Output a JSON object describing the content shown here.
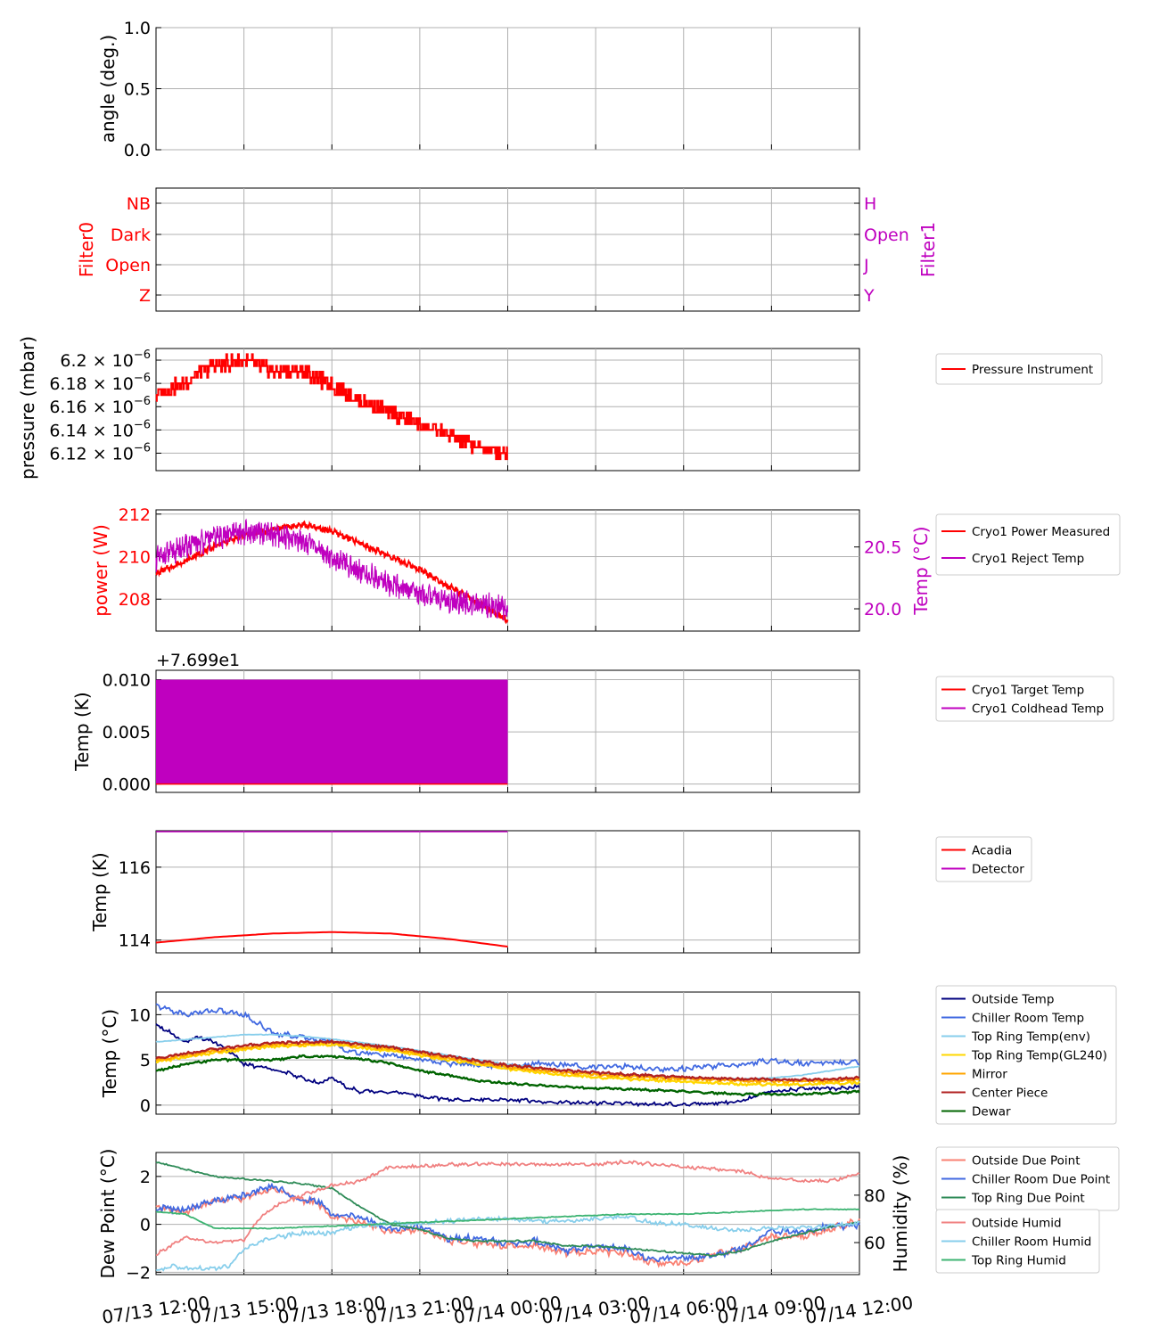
{
  "time_axis": {
    "ticks": [
      "07/13 12:00",
      "07/13 15:00",
      "07/13 18:00",
      "07/13 21:00",
      "07/14 00:00",
      "07/14 03:00",
      "07/14 06:00",
      "07/14 09:00",
      "07/14 12:00"
    ],
    "range_hours": [
      0,
      24
    ],
    "data_end_hours": 12
  },
  "colors": {
    "red": "#ff0000",
    "magenta": "#bf00bf",
    "navy": "#00007f",
    "royalblue": "#4169e1",
    "skyblue": "#87ceeb",
    "gold": "#ffd700",
    "orange": "#ffa500",
    "firebrick": "#b22222",
    "darkgreen": "#006400",
    "salmon": "#fa8072",
    "lightcoral": "#f08080",
    "seagreen": "#2e8b57",
    "mediumseagreen": "#3cb371"
  },
  "chart_data": [
    {
      "type": "line",
      "ylabel": "angle (deg.)",
      "ylim": [
        0,
        1
      ],
      "yticks": [
        "0.0",
        "0.5",
        "1.0"
      ],
      "grid": true,
      "series": []
    },
    {
      "type": "line",
      "ylabel": "Filter0",
      "y2label": "Filter1",
      "yticks_left": [
        "Z",
        "Open",
        "Dark",
        "NB"
      ],
      "yticks_right": [
        "Y",
        "J",
        "Open",
        "H"
      ],
      "grid": true,
      "series": []
    },
    {
      "type": "line",
      "ylabel": "pressure (mbar)",
      "ylim": [
        6.105e-06,
        6.21e-06
      ],
      "yticks": [
        {
          "mant": "6.12",
          "exp": "−6"
        },
        {
          "mant": "6.14",
          "exp": "−6"
        },
        {
          "mant": "6.16",
          "exp": "−6"
        },
        {
          "mant": "6.18",
          "exp": "−6"
        },
        {
          "mant": "6.2",
          "exp": "−6"
        }
      ],
      "legend": "right",
      "series": [
        {
          "name": "Pressure Instrument",
          "color": "#ff0000",
          "x": [
            0,
            0.3,
            1.0,
            1.5,
            2.0,
            3.0,
            3.5,
            4.0,
            5.0,
            5.5,
            6.2,
            7.0,
            7.5,
            8.0,
            9.0,
            9.5,
            10.0,
            10.5,
            11.0,
            12.0
          ],
          "y": [
            6.17e-06,
            6.175e-06,
            6.18e-06,
            6.19e-06,
            6.195e-06,
            6.2e-06,
            6.195e-06,
            6.19e-06,
            6.19e-06,
            6.185e-06,
            6.175e-06,
            6.165e-06,
            6.16e-06,
            6.155e-06,
            6.145e-06,
            6.14e-06,
            6.135e-06,
            6.13e-06,
            6.125e-06,
            6.12e-06
          ]
        }
      ]
    },
    {
      "type": "line",
      "ylabel": "power (W)",
      "y2label": "Temp (°C)",
      "ylim": [
        206.5,
        212.2
      ],
      "y2lim": [
        19.82,
        20.8
      ],
      "yticks": [
        "208",
        "210",
        "212"
      ],
      "y2ticks": [
        "20.0",
        "20.5"
      ],
      "legend": "right",
      "series": [
        {
          "name": "Cryo1 Power Measured",
          "axis": "left",
          "color": "#ff0000",
          "x": [
            0,
            1,
            2,
            3,
            4,
            5,
            6,
            7,
            8,
            9,
            10,
            11,
            12
          ],
          "y": [
            209.2,
            209.8,
            210.5,
            211.0,
            211.3,
            211.5,
            211.2,
            210.6,
            210.0,
            209.4,
            208.6,
            207.8,
            207.0
          ]
        },
        {
          "name": "Cryo1 Reject Temp",
          "axis": "right",
          "color": "#bf00bf",
          "x": [
            0,
            1,
            2,
            3,
            4,
            5,
            6,
            7,
            8,
            9,
            10,
            11,
            12
          ],
          "y": [
            20.4,
            20.5,
            20.58,
            20.62,
            20.6,
            20.56,
            20.42,
            20.3,
            20.2,
            20.12,
            20.06,
            20.03,
            20.01
          ]
        }
      ]
    },
    {
      "type": "line",
      "offset_label": "+7.699e1",
      "ylabel": "Temp (K)",
      "ylim": [
        -0.0008,
        0.0109
      ],
      "yticks": [
        "0.000",
        "0.005",
        "0.010"
      ],
      "legend": "right",
      "series": [
        {
          "name": "Cryo1 Target Temp",
          "color": "#ff0000",
          "x": [
            0,
            12
          ],
          "y": [
            0.0,
            0.0
          ]
        },
        {
          "name": "Cryo1 Coldhead Temp",
          "color": "#bf00bf",
          "x": [
            0,
            12
          ],
          "y_band": [
            0.0,
            0.01
          ]
        }
      ]
    },
    {
      "type": "line",
      "ylabel": "Temp (K)",
      "ylim": [
        113.65,
        117.0
      ],
      "yticks": [
        "114",
        "116"
      ],
      "legend": "right",
      "series": [
        {
          "name": "Acadia",
          "color": "#ff0000",
          "x": [
            0,
            2,
            4,
            6,
            8,
            10,
            12
          ],
          "y": [
            113.93,
            114.08,
            114.18,
            114.22,
            114.18,
            114.03,
            113.82
          ]
        },
        {
          "name": "Detector",
          "color": "#bf00bf",
          "x": [
            0,
            12
          ],
          "y": [
            117.0,
            117.0
          ]
        }
      ]
    },
    {
      "type": "line",
      "ylabel": "Temp (°C)",
      "ylim": [
        -1.0,
        12.5
      ],
      "yticks": [
        "0",
        "5",
        "10"
      ],
      "legend": "right",
      "series": [
        {
          "name": "Outside Temp",
          "color": "#00007f",
          "x": [
            0,
            1,
            1.5,
            2,
            2.5,
            3,
            4,
            5,
            5.5,
            6,
            6.5,
            7,
            8,
            9,
            10,
            11,
            12,
            13,
            14,
            15,
            16,
            17,
            18,
            19,
            20,
            20.5,
            21,
            22,
            23,
            24
          ],
          "y": [
            9.0,
            7.0,
            7.5,
            7.0,
            6.0,
            4.5,
            4.0,
            3.0,
            2.5,
            3.0,
            2.0,
            1.5,
            1.5,
            1.0,
            0.6,
            0.6,
            0.6,
            0.4,
            0.3,
            0.2,
            0.2,
            0.1,
            0.1,
            0.2,
            0.5,
            1.0,
            1.5,
            1.8,
            1.8,
            2.0
          ]
        },
        {
          "name": "Chiller Room Temp",
          "color": "#4169e1",
          "x": [
            0,
            1,
            2,
            3,
            3.5,
            4,
            5,
            6,
            6.5,
            7,
            8,
            9,
            10,
            11,
            12,
            13,
            14,
            15,
            16,
            17,
            18,
            19,
            20,
            21,
            22,
            23,
            24
          ],
          "y": [
            11.0,
            10.0,
            10.5,
            10.0,
            9.0,
            8.0,
            7.5,
            7.0,
            6.0,
            5.8,
            5.5,
            5.0,
            4.6,
            4.5,
            4.3,
            4.6,
            4.4,
            4.2,
            4.3,
            4.0,
            4.0,
            4.3,
            4.5,
            5.0,
            4.6,
            4.7,
            4.8
          ]
        },
        {
          "name": "Top Ring Temp(env)",
          "color": "#87ceeb",
          "x": [
            0,
            2,
            3,
            4,
            5,
            6,
            8,
            10,
            12,
            14,
            16,
            18,
            20,
            21,
            22,
            23,
            24
          ],
          "y": [
            7.0,
            7.5,
            7.8,
            7.8,
            7.6,
            7.3,
            6.5,
            5.5,
            4.5,
            3.8,
            3.3,
            3.0,
            2.9,
            3.0,
            3.3,
            3.8,
            4.3
          ]
        },
        {
          "name": "Top Ring Temp(GL240)",
          "color": "#ffd700",
          "x": [
            0,
            2,
            4,
            6,
            8,
            10,
            12,
            14,
            16,
            18,
            20,
            22,
            24
          ],
          "y": [
            4.8,
            5.8,
            6.5,
            6.7,
            6.0,
            5.0,
            4.0,
            3.3,
            2.9,
            2.6,
            2.3,
            2.3,
            2.5
          ]
        },
        {
          "name": "Mirror",
          "color": "#ffa500",
          "x": [
            0,
            2,
            4,
            6,
            8,
            10,
            12,
            14,
            16,
            18,
            20,
            22,
            24
          ],
          "y": [
            5.0,
            6.0,
            6.7,
            6.9,
            6.2,
            5.2,
            4.2,
            3.6,
            3.2,
            2.9,
            2.7,
            2.6,
            2.8
          ]
        },
        {
          "name": "Center Piece",
          "color": "#b22222",
          "x": [
            0,
            2,
            4,
            6,
            8,
            10,
            12,
            14,
            16,
            18,
            20,
            22,
            24
          ],
          "y": [
            5.2,
            6.2,
            6.9,
            7.0,
            6.4,
            5.4,
            4.4,
            3.8,
            3.4,
            3.1,
            2.9,
            2.8,
            3.0
          ]
        },
        {
          "name": "Dewar",
          "color": "#006400",
          "x": [
            0,
            1,
            2,
            3,
            4,
            5,
            6,
            7,
            8,
            9,
            10,
            11,
            12,
            14,
            16,
            18,
            20,
            22,
            24
          ],
          "y": [
            3.8,
            4.5,
            5.0,
            5.0,
            5.0,
            5.4,
            5.4,
            5.1,
            4.6,
            3.8,
            3.3,
            2.7,
            2.4,
            2.0,
            1.8,
            1.5,
            1.2,
            1.2,
            1.5
          ]
        }
      ]
    },
    {
      "type": "line",
      "ylabel": "Dew Point (°C)",
      "y2label": "Humidity (%)",
      "ylim": [
        -2.1,
        3.0
      ],
      "y2lim": [
        46.5,
        98
      ],
      "yticks": [
        "−2",
        "0",
        "2"
      ],
      "y2ticks": [
        "60",
        "80"
      ],
      "legend": "right",
      "series": [
        {
          "name": "Outside Due Point",
          "axis": "left",
          "color": "#fa8072",
          "x": [
            0,
            1,
            2,
            3,
            4,
            5,
            5.5,
            6,
            7,
            8,
            9,
            10,
            11,
            12,
            13,
            14,
            15,
            16,
            17,
            18,
            19,
            20,
            21,
            22,
            23,
            24
          ],
          "y": [
            0.7,
            0.5,
            1.0,
            1.1,
            1.5,
            1.0,
            0.9,
            0.3,
            0.1,
            -0.3,
            -0.2,
            -0.7,
            -0.8,
            -0.9,
            -0.9,
            -1.2,
            -1.1,
            -1.2,
            -1.6,
            -1.6,
            -1.3,
            -1.0,
            -0.5,
            -0.5,
            -0.2,
            0.2
          ]
        },
        {
          "name": "Chiller Room Due Point",
          "axis": "left",
          "color": "#4169e1",
          "x": [
            0,
            1,
            2,
            3,
            4,
            5,
            5.5,
            6,
            7,
            8,
            9,
            10,
            11,
            12,
            13,
            14,
            15,
            16,
            17,
            18,
            19,
            20,
            21,
            22,
            23,
            24
          ],
          "y": [
            0.7,
            0.6,
            1.0,
            1.2,
            1.6,
            1.0,
            1.0,
            0.4,
            0.3,
            -0.2,
            -0.1,
            -0.6,
            -0.6,
            -0.8,
            -0.7,
            -1.1,
            -0.9,
            -1.0,
            -1.5,
            -1.4,
            -1.3,
            -1.0,
            -0.3,
            -0.3,
            -0.1,
            0.0
          ]
        },
        {
          "name": "Top Ring Due Point",
          "axis": "left",
          "color": "#2e8b57",
          "x": [
            0,
            1,
            2,
            3,
            4,
            5,
            6,
            7,
            8,
            9,
            10,
            11,
            12,
            13,
            14,
            15,
            16,
            17,
            18,
            19,
            20,
            21,
            22,
            23,
            24
          ],
          "y": [
            2.6,
            2.3,
            2.0,
            1.9,
            1.8,
            1.7,
            1.5,
            0.7,
            0.0,
            -0.2,
            -0.6,
            -0.7,
            -0.7,
            -0.7,
            -0.9,
            -0.9,
            -1.0,
            -1.1,
            -1.2,
            -1.3,
            -1.1,
            -0.7,
            -0.4,
            -0.1,
            0.1
          ]
        },
        {
          "name": "Outside Humid",
          "axis": "right",
          "color": "#f08080",
          "x": [
            0,
            1,
            2,
            3,
            3.5,
            4,
            5,
            6,
            7,
            8,
            9,
            10,
            11,
            12,
            13,
            14,
            15,
            16,
            17,
            18,
            19,
            20,
            21,
            22,
            23,
            24
          ],
          "y": [
            55,
            62,
            60,
            61,
            70,
            75,
            80,
            84,
            86,
            92,
            92,
            93,
            93,
            93,
            93,
            93,
            93,
            94,
            93,
            92,
            91,
            90,
            87,
            86,
            86,
            89
          ]
        },
        {
          "name": "Chiller Room Humid",
          "axis": "right",
          "color": "#87ceeb",
          "x": [
            0,
            0.5,
            1,
            2,
            2.5,
            3,
            3.5,
            4,
            5,
            6,
            6.5,
            7,
            8,
            9,
            10,
            11,
            12,
            13,
            14,
            15,
            16,
            17,
            18,
            19,
            20,
            21,
            22,
            23,
            24
          ],
          "y": [
            48,
            50,
            49,
            49,
            50,
            57,
            60,
            62,
            64,
            64,
            66,
            67,
            68,
            68,
            69,
            70,
            70,
            69,
            69,
            70,
            71,
            68,
            68,
            66,
            65,
            66,
            66,
            67,
            68
          ]
        },
        {
          "name": "Top Ring Humid",
          "axis": "right",
          "color": "#3cb371",
          "x": [
            0,
            1,
            2,
            3,
            4,
            6,
            8,
            10,
            12,
            14,
            16,
            18,
            20,
            22,
            24
          ],
          "y": [
            73,
            72,
            66,
            66,
            66,
            67,
            68,
            69,
            70,
            71,
            72,
            72,
            73,
            74,
            74
          ]
        }
      ]
    }
  ]
}
